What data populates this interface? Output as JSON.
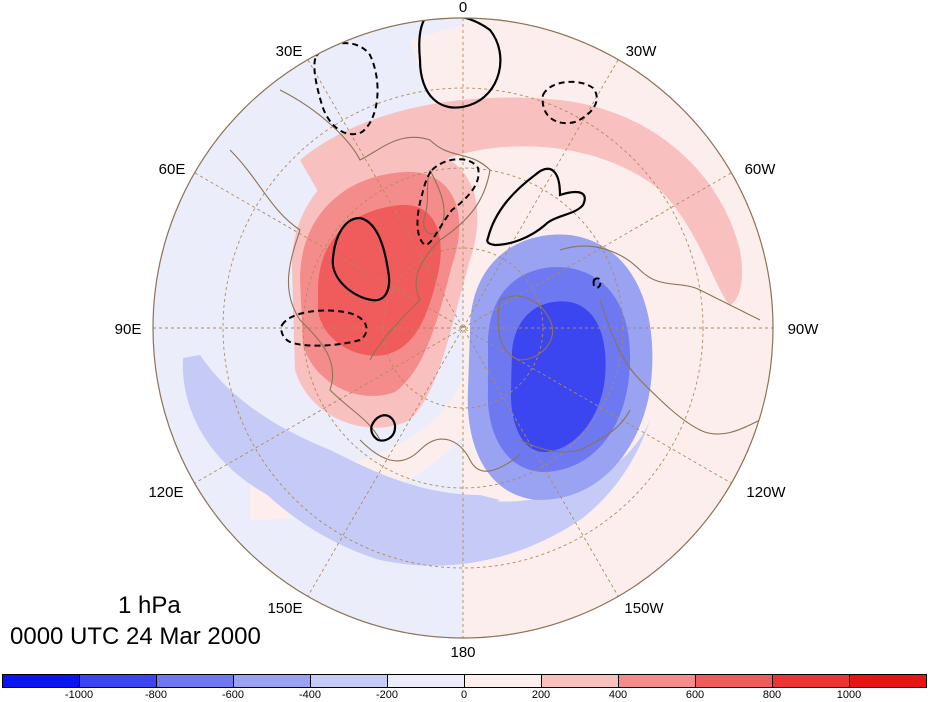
{
  "map": {
    "projection": "north polar stereographic",
    "field": "geopotential height anomaly",
    "longitude_labels": {
      "lon_0": "0",
      "lon_30E": "30E",
      "lon_30W": "30W",
      "lon_60E": "60E",
      "lon_60W": "60W",
      "lon_90E": "90E",
      "lon_90W": "90W",
      "lon_120E": "120E",
      "lon_120W": "120W",
      "lon_150E": "150E",
      "lon_150W": "150W",
      "lon_180": "180"
    }
  },
  "title": {
    "level": "1 hPa",
    "time": "0000 UTC 24 Mar 2000"
  },
  "colorbar": {
    "tick_labels": [
      "-1000",
      "-800",
      "-600",
      "-400",
      "-200",
      "0",
      "200",
      "400",
      "600",
      "800",
      "1000"
    ],
    "colors": [
      "#0a14f0",
      "#3c46f0",
      "#6e78f0",
      "#9aa2f2",
      "#c6caf6",
      "#ecedfb",
      "#fdeeee",
      "#f9c0c0",
      "#f58c8c",
      "#f05c5c",
      "#ec3434",
      "#e81414"
    ]
  },
  "colors": {
    "map_outline": "#8b7355",
    "graticule": "#b08a5a",
    "coastline": "#8b7355",
    "contour": "#000000"
  }
}
